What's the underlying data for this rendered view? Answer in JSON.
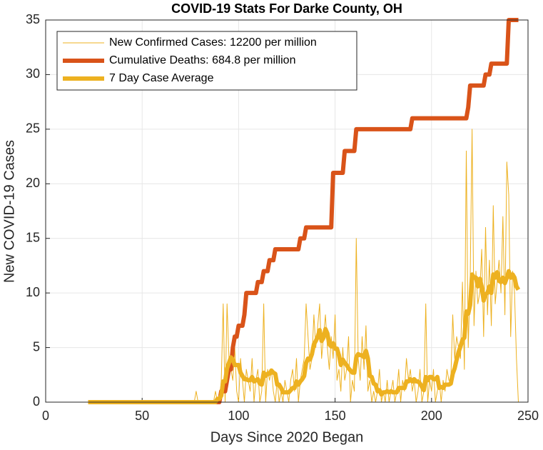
{
  "chart_data": {
    "type": "line",
    "title": "COVID-19 Stats For Darke County, OH",
    "xlabel": "Days Since 2020 Began",
    "ylabel": "New COVID-19 Cases",
    "xlim": [
      0,
      250
    ],
    "xticks": [
      0,
      50,
      100,
      150,
      200,
      250
    ],
    "ylim": [
      0,
      35
    ],
    "yticks": [
      0,
      5,
      10,
      15,
      20,
      25,
      30,
      35
    ],
    "grid": true,
    "legend": "northwest",
    "x": [
      22,
      23,
      24,
      25,
      26,
      27,
      28,
      29,
      30,
      31,
      32,
      33,
      34,
      35,
      36,
      37,
      38,
      39,
      40,
      41,
      42,
      43,
      44,
      45,
      46,
      47,
      48,
      49,
      50,
      51,
      52,
      53,
      54,
      55,
      56,
      57,
      58,
      59,
      60,
      61,
      62,
      63,
      64,
      65,
      66,
      67,
      68,
      69,
      70,
      71,
      72,
      73,
      74,
      75,
      76,
      77,
      78,
      79,
      80,
      81,
      82,
      83,
      84,
      85,
      86,
      87,
      88,
      89,
      90,
      91,
      92,
      93,
      94,
      95,
      96,
      97,
      98,
      99,
      100,
      101,
      102,
      103,
      104,
      105,
      106,
      107,
      108,
      109,
      110,
      111,
      112,
      113,
      114,
      115,
      116,
      117,
      118,
      119,
      120,
      121,
      122,
      123,
      124,
      125,
      126,
      127,
      128,
      129,
      130,
      131,
      132,
      133,
      134,
      135,
      136,
      137,
      138,
      139,
      140,
      141,
      142,
      143,
      144,
      145,
      146,
      147,
      148,
      149,
      150,
      151,
      152,
      153,
      154,
      155,
      156,
      157,
      158,
      159,
      160,
      161,
      162,
      163,
      164,
      165,
      166,
      167,
      168,
      169,
      170,
      171,
      172,
      173,
      174,
      175,
      176,
      177,
      178,
      179,
      180,
      181,
      182,
      183,
      184,
      185,
      186,
      187,
      188,
      189,
      190,
      191,
      192,
      193,
      194,
      195,
      196,
      197,
      198,
      199,
      200,
      201,
      202,
      203,
      204,
      205,
      206,
      207,
      208,
      209,
      210,
      211,
      212,
      213,
      214,
      215,
      216,
      217,
      218,
      219,
      220,
      221,
      222,
      223,
      224,
      225,
      226,
      227,
      228,
      229,
      230,
      231,
      232,
      233,
      234,
      235,
      236,
      237,
      238,
      239,
      240,
      241,
      242,
      243,
      244,
      245
    ],
    "series": [
      {
        "name": "New Confirmed Cases: 12200 per million",
        "color": "#EDB120",
        "width": 1,
        "values": [
          0,
          0,
          0,
          0,
          0,
          0,
          0,
          0,
          0,
          0,
          0,
          0,
          0,
          0,
          0,
          0,
          0,
          0,
          0,
          0,
          0,
          0,
          0,
          0,
          0,
          0,
          0,
          0,
          0,
          0,
          0,
          0,
          0,
          0,
          0,
          0,
          0,
          0,
          0,
          0,
          0,
          0,
          0,
          0,
          0,
          0,
          0,
          0,
          0,
          0,
          0,
          0,
          0,
          0,
          0,
          0,
          1,
          0,
          0,
          0,
          0,
          0,
          0,
          0,
          0,
          0,
          1,
          0,
          0,
          2,
          9,
          0,
          9,
          4,
          3,
          2,
          5,
          1,
          0,
          4,
          2,
          0,
          3,
          2,
          1,
          4,
          0,
          2,
          3,
          0,
          1,
          9,
          0,
          3,
          2,
          3,
          1,
          0,
          2,
          0,
          1,
          0,
          2,
          1,
          0,
          2,
          3,
          1,
          4,
          0,
          2,
          3,
          4,
          9,
          6,
          3,
          4,
          8,
          5,
          7,
          9,
          4,
          6,
          8,
          5,
          3,
          6,
          4,
          8,
          2,
          3,
          1,
          5,
          2,
          3,
          6,
          0,
          2,
          1,
          15,
          4,
          2,
          6,
          3,
          7,
          1,
          2,
          0,
          1,
          0,
          1,
          3,
          0,
          1,
          0,
          2,
          0,
          1,
          2,
          0,
          1,
          3,
          0,
          2,
          1,
          4,
          2,
          3,
          1,
          2,
          0,
          1,
          3,
          0,
          1,
          9,
          0,
          2,
          1,
          3,
          0,
          1,
          2,
          0,
          2,
          1,
          3,
          2,
          2,
          8,
          4,
          6,
          5,
          4,
          11,
          3,
          23,
          5,
          11,
          25,
          7,
          12,
          9,
          10,
          14,
          6,
          16,
          8,
          13,
          7,
          18,
          9,
          11,
          13,
          10,
          17,
          8,
          22,
          19,
          6,
          12,
          10,
          4,
          0
        ]
      },
      {
        "name": "Cumulative Deaths: 684.8 per million",
        "color": "#D95319",
        "width": 6,
        "values": [
          0,
          0,
          0,
          0,
          0,
          0,
          0,
          0,
          0,
          0,
          0,
          0,
          0,
          0,
          0,
          0,
          0,
          0,
          0,
          0,
          0,
          0,
          0,
          0,
          0,
          0,
          0,
          0,
          0,
          0,
          0,
          0,
          0,
          0,
          0,
          0,
          0,
          0,
          0,
          0,
          0,
          0,
          0,
          0,
          0,
          0,
          0,
          0,
          0,
          0,
          0,
          0,
          0,
          0,
          0,
          0,
          0,
          0,
          0,
          0,
          0,
          0,
          0,
          0,
          0,
          0,
          0,
          0,
          0,
          1,
          1,
          1,
          2,
          3,
          3,
          5,
          6,
          6,
          7,
          7,
          7,
          8,
          10,
          10,
          10,
          10,
          10,
          10,
          11,
          11,
          11,
          12,
          12,
          12,
          13,
          13,
          13,
          14,
          14,
          14,
          14,
          14,
          14,
          14,
          14,
          14,
          14,
          14,
          14,
          14,
          15,
          15,
          15,
          16,
          16,
          16,
          16,
          16,
          16,
          16,
          16,
          16,
          16,
          16,
          16,
          16,
          16,
          21,
          21,
          21,
          21,
          21,
          21,
          23,
          23,
          23,
          23,
          23,
          23,
          25,
          25,
          25,
          25,
          25,
          25,
          25,
          25,
          25,
          25,
          25,
          25,
          25,
          25,
          25,
          25,
          25,
          25,
          25,
          25,
          25,
          25,
          25,
          25,
          25,
          25,
          25,
          25,
          25,
          26,
          26,
          26,
          26,
          26,
          26,
          26,
          26,
          26,
          26,
          26,
          26,
          26,
          26,
          26,
          26,
          26,
          26,
          26,
          26,
          26,
          26,
          26,
          26,
          26,
          26,
          26,
          26,
          26,
          27,
          29,
          29,
          29,
          29,
          29,
          29,
          29,
          29,
          30,
          30,
          30,
          31,
          31,
          31,
          31,
          31,
          31,
          31,
          31,
          31,
          35,
          35,
          35,
          35,
          35,
          35
        ]
      },
      {
        "name": "7 Day Case Average",
        "color": "#EDB120",
        "width": 6,
        "values": [
          0,
          0,
          0,
          0,
          0,
          0,
          0,
          0,
          0,
          0,
          0,
          0,
          0,
          0,
          0,
          0,
          0,
          0,
          0,
          0,
          0,
          0,
          0,
          0,
          0,
          0,
          0,
          0,
          0,
          0,
          0,
          0,
          0,
          0,
          0,
          0,
          0,
          0,
          0,
          0,
          0,
          0,
          0,
          0,
          0,
          0,
          0,
          0,
          0,
          0,
          0,
          0,
          0,
          0,
          0,
          0,
          0,
          0,
          0,
          0,
          0,
          0,
          0,
          0,
          0,
          0,
          0,
          0.3,
          0.3,
          0.6,
          1.9,
          1.9,
          3.1,
          3.6,
          4.1,
          3.9,
          3.4,
          3.4,
          3.4,
          2.7,
          2.4,
          2.1,
          2.1,
          2.0,
          2.0,
          2.3,
          1.9,
          2.0,
          2.1,
          1.7,
          1.6,
          2.7,
          2.4,
          2.6,
          2.6,
          2.9,
          2.7,
          2.6,
          1.6,
          1.6,
          1.3,
          0.9,
          0.9,
          0.9,
          0.9,
          1.1,
          1.3,
          1.3,
          1.9,
          1.6,
          1.9,
          2.1,
          2.4,
          3.6,
          4.0,
          3.9,
          4.4,
          5.3,
          5.6,
          6.0,
          6.6,
          5.6,
          5.9,
          6.7,
          6.3,
          5.3,
          5.1,
          5.4,
          4.9,
          4.9,
          4.3,
          3.4,
          3.9,
          3.6,
          3.4,
          3.1,
          2.9,
          2.7,
          2.7,
          4.1,
          4.4,
          4.3,
          4.3,
          4.1,
          4.7,
          4.0,
          2.4,
          2.3,
          1.7,
          1.6,
          1.0,
          1.1,
          0.7,
          0.9,
          0.9,
          1.0,
          0.9,
          1.0,
          0.9,
          0.9,
          0.9,
          1.3,
          1.3,
          1.3,
          1.3,
          1.9,
          1.9,
          2.1,
          1.9,
          2.1,
          1.9,
          1.9,
          1.7,
          1.4,
          1.1,
          2.3,
          2.0,
          2.3,
          2.3,
          2.1,
          2.1,
          2.3,
          1.3,
          1.4,
          1.3,
          1.6,
          1.6,
          1.6,
          1.7,
          2.6,
          3.1,
          3.9,
          4.6,
          5.1,
          5.7,
          5.9,
          8.3,
          8.1,
          8.9,
          11.7,
          11.4,
          11.4,
          10.6,
          11.3,
          10.6,
          9.3,
          9.9,
          10.0,
          10.6,
          10.0,
          11.7,
          11.4,
          11.9,
          11.1,
          11.0,
          11.4,
          10.9,
          11.4,
          12.0,
          11.4,
          11.7,
          11.4,
          10.6,
          10.3
        ]
      }
    ]
  }
}
